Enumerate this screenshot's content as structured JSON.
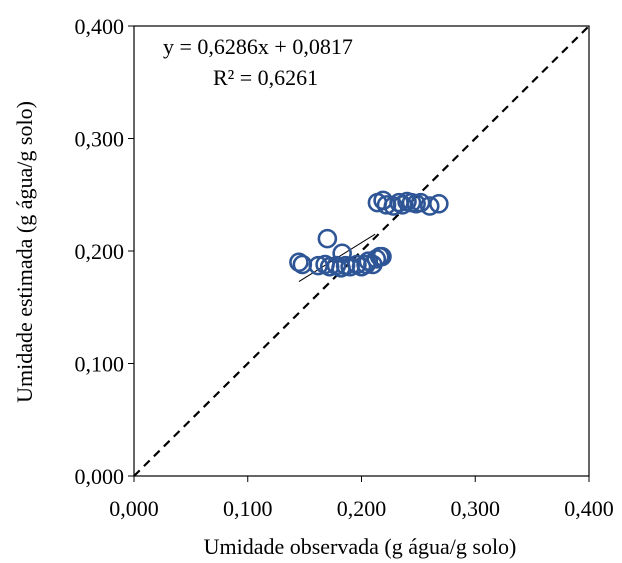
{
  "chart_data": {
    "type": "scatter",
    "xlabel": "Umidade  observada (g água/g solo)",
    "ylabel": "Umidade estimada (g água/g solo)",
    "xlim": [
      0,
      0.4
    ],
    "ylim": [
      0,
      0.4
    ],
    "x_ticks": [
      "0,000",
      "0,100",
      "0,200",
      "0,300",
      "0,400"
    ],
    "y_ticks": [
      "0,000",
      "0,100",
      "0,200",
      "0,300",
      "0,400"
    ],
    "grid": false,
    "legend": "none",
    "marker": "open-circle",
    "marker_color": "#2e5596",
    "annotations": {
      "equation": "y = 0,6286x + 0,0817",
      "r2": "R² = 0,6261"
    },
    "trendline": {
      "slope": 0.6286,
      "intercept": 0.0817,
      "x_range": [
        0.145,
        0.212
      ],
      "color": "#000000"
    },
    "identity_line": {
      "from": [
        0,
        0
      ],
      "to": [
        0.4,
        0.4
      ],
      "style": "dashed",
      "color": "#000000"
    },
    "series": [
      {
        "x": [
          0.145,
          0.148,
          0.162,
          0.168,
          0.172,
          0.178,
          0.182,
          0.186,
          0.19,
          0.196,
          0.2,
          0.204,
          0.206,
          0.21,
          0.213,
          0.216,
          0.218,
          0.17,
          0.183,
          0.214,
          0.219,
          0.222,
          0.228,
          0.233,
          0.236,
          0.24,
          0.244,
          0.248,
          0.252,
          0.26,
          0.268
        ],
        "y": [
          0.19,
          0.188,
          0.187,
          0.188,
          0.186,
          0.187,
          0.185,
          0.187,
          0.186,
          0.188,
          0.186,
          0.188,
          0.191,
          0.188,
          0.193,
          0.195,
          0.195,
          0.211,
          0.198,
          0.243,
          0.245,
          0.241,
          0.24,
          0.243,
          0.241,
          0.244,
          0.243,
          0.242,
          0.243,
          0.24,
          0.242
        ]
      }
    ]
  }
}
